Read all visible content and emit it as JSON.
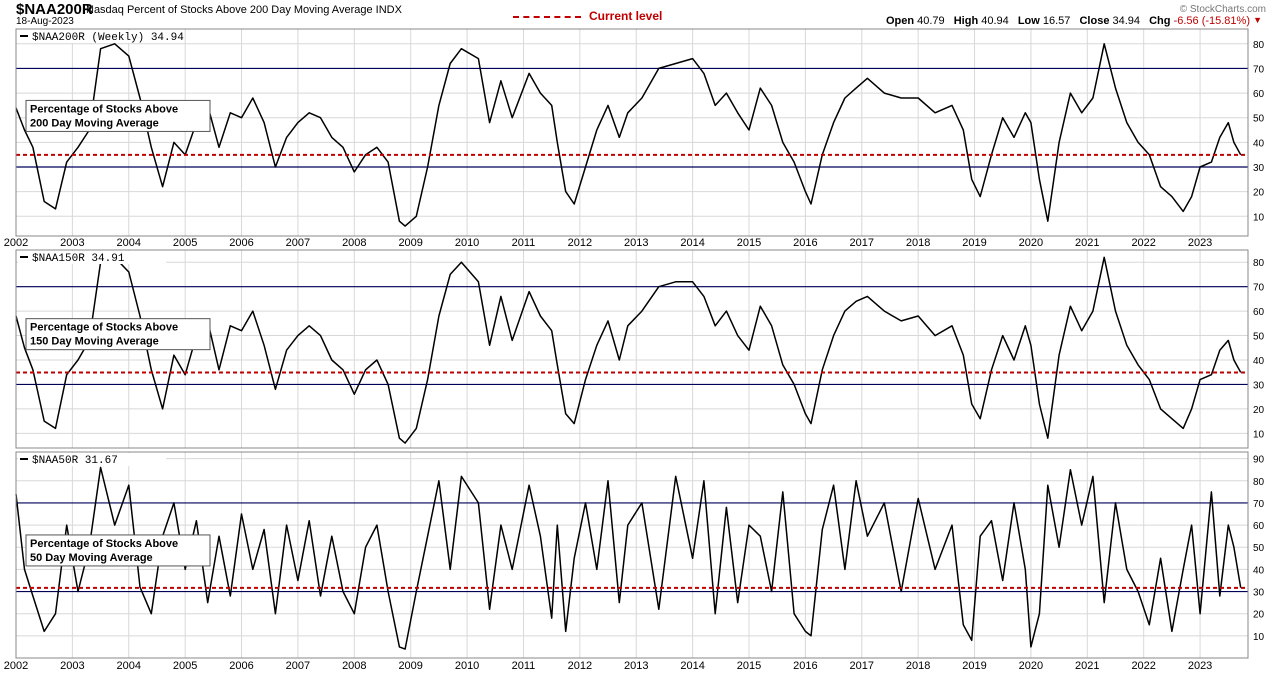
{
  "header": {
    "symbol": "$NAA200R",
    "description": "Nasdaq Percent of Stocks Above 200 Day Moving Average INDX",
    "date": "18-Aug-2023",
    "brand": "© StockCharts.com",
    "legend_label": "Current level",
    "ohlc": {
      "open_label": "Open",
      "open": "40.79",
      "high_label": "High",
      "high": "40.94",
      "low_label": "Low",
      "low": "16.57",
      "close_label": "Close",
      "close": "34.94",
      "chg_label": "Chg",
      "chg": "-6.56 (-15.81%)",
      "direction_icon": "triangle-down-icon"
    }
  },
  "colors": {
    "current_level_line": "#c00000",
    "reference_line": "#00005a",
    "series_line": "#000000",
    "grid": "#d8d8d8"
  },
  "chart_data": [
    {
      "type": "line",
      "panel_label": "$NAA200R (Weekly) 34.94",
      "annotation": [
        "Percentage of Stocks Above",
        "200 Day Moving Average"
      ],
      "x_ticks": [
        "2002",
        "2003",
        "2004",
        "2005",
        "2006",
        "2007",
        "2008",
        "2009",
        "2010",
        "2011",
        "2012",
        "2013",
        "2014",
        "2015",
        "2016",
        "2017",
        "2018",
        "2019",
        "2020",
        "2021",
        "2022",
        "2023"
      ],
      "y_ticks": [
        10,
        20,
        30,
        40,
        50,
        60,
        70,
        80
      ],
      "ylim": [
        2,
        86
      ],
      "xlim": [
        2002.0,
        2023.85
      ],
      "reference_lines": [
        30,
        70
      ],
      "current_level": 34.94,
      "grid": true,
      "series": [
        {
          "x": [
            2002.0,
            2002.15,
            2002.3,
            2002.5,
            2002.7,
            2002.9,
            2003.1,
            2003.3,
            2003.5,
            2003.75,
            2004.0,
            2004.2,
            2004.4,
            2004.6,
            2004.8,
            2005.0,
            2005.2,
            2005.4,
            2005.6,
            2005.8,
            2006.0,
            2006.2,
            2006.4,
            2006.6,
            2006.8,
            2007.0,
            2007.2,
            2007.4,
            2007.6,
            2007.8,
            2008.0,
            2008.2,
            2008.4,
            2008.6,
            2008.8,
            2008.9,
            2009.1,
            2009.3,
            2009.5,
            2009.7,
            2009.9,
            2010.2,
            2010.4,
            2010.6,
            2010.8,
            2011.1,
            2011.3,
            2011.5,
            2011.6,
            2011.75,
            2011.9,
            2012.1,
            2012.3,
            2012.5,
            2012.7,
            2012.85,
            2013.1,
            2013.4,
            2013.7,
            2014.0,
            2014.2,
            2014.4,
            2014.6,
            2014.8,
            2015.0,
            2015.2,
            2015.4,
            2015.6,
            2015.8,
            2016.0,
            2016.1,
            2016.3,
            2016.5,
            2016.7,
            2016.9,
            2017.1,
            2017.4,
            2017.7,
            2018.0,
            2018.3,
            2018.6,
            2018.8,
            2018.95,
            2019.1,
            2019.3,
            2019.5,
            2019.7,
            2019.9,
            2020.0,
            2020.15,
            2020.3,
            2020.5,
            2020.7,
            2020.9,
            2021.1,
            2021.3,
            2021.5,
            2021.7,
            2021.9,
            2022.1,
            2022.3,
            2022.5,
            2022.7,
            2022.85,
            2023.0,
            2023.2,
            2023.35,
            2023.5,
            2023.6,
            2023.72
          ],
          "values": [
            54,
            45,
            38,
            16,
            13,
            32,
            38,
            45,
            78,
            80,
            75,
            58,
            38,
            22,
            40,
            35,
            48,
            55,
            38,
            52,
            50,
            58,
            48,
            30,
            42,
            48,
            52,
            50,
            42,
            38,
            28,
            35,
            38,
            32,
            8,
            6,
            10,
            30,
            55,
            72,
            78,
            74,
            48,
            65,
            50,
            68,
            60,
            55,
            40,
            20,
            15,
            30,
            45,
            55,
            42,
            52,
            58,
            70,
            72,
            74,
            68,
            55,
            60,
            52,
            45,
            62,
            55,
            40,
            32,
            20,
            15,
            35,
            48,
            58,
            62,
            66,
            60,
            58,
            58,
            52,
            55,
            45,
            25,
            18,
            35,
            50,
            42,
            52,
            48,
            25,
            8,
            40,
            60,
            52,
            58,
            80,
            62,
            48,
            40,
            35,
            22,
            18,
            12,
            18,
            30,
            32,
            42,
            48,
            40,
            34.94
          ]
        }
      ]
    },
    {
      "type": "line",
      "panel_label": "$NAA150R 34.91",
      "annotation": [
        "Percentage of Stocks Above",
        "150 Day Moving Average"
      ],
      "x_ticks": [],
      "y_ticks": [
        10,
        20,
        30,
        40,
        50,
        60,
        70,
        80
      ],
      "ylim": [
        4,
        85
      ],
      "xlim": [
        2002.0,
        2023.85
      ],
      "reference_lines": [
        30,
        70
      ],
      "current_level": 34.91,
      "grid": true,
      "series": [
        {
          "x": [
            2002.0,
            2002.15,
            2002.3,
            2002.5,
            2002.7,
            2002.9,
            2003.1,
            2003.3,
            2003.5,
            2003.75,
            2004.0,
            2004.2,
            2004.4,
            2004.6,
            2004.8,
            2005.0,
            2005.2,
            2005.4,
            2005.6,
            2005.8,
            2006.0,
            2006.2,
            2006.4,
            2006.6,
            2006.8,
            2007.0,
            2007.2,
            2007.4,
            2007.6,
            2007.8,
            2008.0,
            2008.2,
            2008.4,
            2008.6,
            2008.8,
            2008.9,
            2009.1,
            2009.3,
            2009.5,
            2009.7,
            2009.9,
            2010.2,
            2010.4,
            2010.6,
            2010.8,
            2011.1,
            2011.3,
            2011.5,
            2011.6,
            2011.75,
            2011.9,
            2012.1,
            2012.3,
            2012.5,
            2012.7,
            2012.85,
            2013.1,
            2013.4,
            2013.7,
            2014.0,
            2014.2,
            2014.4,
            2014.6,
            2014.8,
            2015.0,
            2015.2,
            2015.4,
            2015.6,
            2015.8,
            2016.0,
            2016.1,
            2016.3,
            2016.5,
            2016.7,
            2016.9,
            2017.1,
            2017.4,
            2017.7,
            2018.0,
            2018.3,
            2018.6,
            2018.8,
            2018.95,
            2019.1,
            2019.3,
            2019.5,
            2019.7,
            2019.9,
            2020.0,
            2020.15,
            2020.3,
            2020.5,
            2020.7,
            2020.9,
            2021.1,
            2021.3,
            2021.5,
            2021.7,
            2021.9,
            2022.1,
            2022.3,
            2022.5,
            2022.7,
            2022.85,
            2023.0,
            2023.2,
            2023.35,
            2023.5,
            2023.6,
            2023.72
          ],
          "values": [
            58,
            45,
            36,
            15,
            12,
            34,
            40,
            48,
            80,
            82,
            76,
            58,
            36,
            20,
            42,
            34,
            50,
            56,
            36,
            54,
            52,
            60,
            46,
            28,
            44,
            50,
            54,
            50,
            40,
            36,
            26,
            36,
            40,
            30,
            8,
            6,
            12,
            32,
            58,
            75,
            80,
            72,
            46,
            66,
            48,
            68,
            58,
            52,
            38,
            18,
            14,
            32,
            46,
            56,
            40,
            54,
            60,
            70,
            72,
            72,
            66,
            54,
            60,
            50,
            44,
            62,
            54,
            38,
            30,
            18,
            14,
            36,
            50,
            60,
            64,
            66,
            60,
            56,
            58,
            50,
            54,
            42,
            22,
            16,
            36,
            50,
            40,
            54,
            46,
            22,
            8,
            42,
            62,
            52,
            60,
            82,
            60,
            46,
            38,
            32,
            20,
            16,
            12,
            20,
            32,
            34,
            44,
            48,
            40,
            34.91
          ]
        }
      ]
    },
    {
      "type": "line",
      "panel_label": "$NAA50R 31.67",
      "annotation": [
        "Percentage of Stocks Above",
        "50 Day Moving Average"
      ],
      "x_ticks": [
        "2002",
        "2003",
        "2004",
        "2005",
        "2006",
        "2007",
        "2008",
        "2009",
        "2010",
        "2011",
        "2012",
        "2013",
        "2014",
        "2015",
        "2016",
        "2017",
        "2018",
        "2019",
        "2020",
        "2021",
        "2022",
        "2023"
      ],
      "y_ticks": [
        10,
        20,
        30,
        40,
        50,
        60,
        70,
        80,
        90
      ],
      "ylim": [
        0,
        93
      ],
      "xlim": [
        2002.0,
        2023.85
      ],
      "reference_lines": [
        30,
        70
      ],
      "current_level": 31.67,
      "grid": true,
      "series": [
        {
          "x": [
            2002.0,
            2002.15,
            2002.3,
            2002.5,
            2002.7,
            2002.9,
            2003.1,
            2003.3,
            2003.5,
            2003.75,
            2004.0,
            2004.2,
            2004.4,
            2004.6,
            2004.8,
            2005.0,
            2005.2,
            2005.4,
            2005.6,
            2005.8,
            2006.0,
            2006.2,
            2006.4,
            2006.6,
            2006.8,
            2007.0,
            2007.2,
            2007.4,
            2007.6,
            2007.8,
            2008.0,
            2008.2,
            2008.4,
            2008.6,
            2008.8,
            2008.9,
            2009.1,
            2009.3,
            2009.5,
            2009.7,
            2009.9,
            2010.2,
            2010.4,
            2010.6,
            2010.8,
            2011.1,
            2011.3,
            2011.5,
            2011.6,
            2011.75,
            2011.9,
            2012.1,
            2012.3,
            2012.5,
            2012.7,
            2012.85,
            2013.1,
            2013.4,
            2013.7,
            2014.0,
            2014.2,
            2014.4,
            2014.6,
            2014.8,
            2015.0,
            2015.2,
            2015.4,
            2015.6,
            2015.8,
            2016.0,
            2016.1,
            2016.3,
            2016.5,
            2016.7,
            2016.9,
            2017.1,
            2017.4,
            2017.7,
            2018.0,
            2018.3,
            2018.6,
            2018.8,
            2018.95,
            2019.1,
            2019.3,
            2019.5,
            2019.7,
            2019.9,
            2020.0,
            2020.15,
            2020.3,
            2020.5,
            2020.7,
            2020.9,
            2021.1,
            2021.3,
            2021.5,
            2021.7,
            2021.9,
            2022.1,
            2022.3,
            2022.5,
            2022.7,
            2022.85,
            2023.0,
            2023.2,
            2023.35,
            2023.5,
            2023.6,
            2023.72
          ],
          "values": [
            74,
            40,
            28,
            12,
            20,
            60,
            30,
            50,
            86,
            60,
            78,
            32,
            20,
            55,
            70,
            40,
            62,
            25,
            55,
            28,
            65,
            40,
            58,
            20,
            60,
            35,
            62,
            28,
            55,
            30,
            20,
            50,
            60,
            30,
            5,
            4,
            30,
            55,
            80,
            40,
            82,
            70,
            22,
            60,
            40,
            78,
            55,
            18,
            60,
            12,
            45,
            70,
            40,
            80,
            25,
            60,
            70,
            22,
            82,
            45,
            80,
            20,
            68,
            25,
            60,
            55,
            30,
            75,
            20,
            12,
            10,
            58,
            78,
            40,
            80,
            55,
            70,
            30,
            72,
            40,
            60,
            15,
            8,
            55,
            62,
            35,
            70,
            40,
            5,
            20,
            78,
            50,
            85,
            60,
            82,
            25,
            70,
            40,
            30,
            15,
            45,
            12,
            40,
            60,
            20,
            75,
            28,
            60,
            50,
            31.67
          ]
        }
      ]
    }
  ]
}
